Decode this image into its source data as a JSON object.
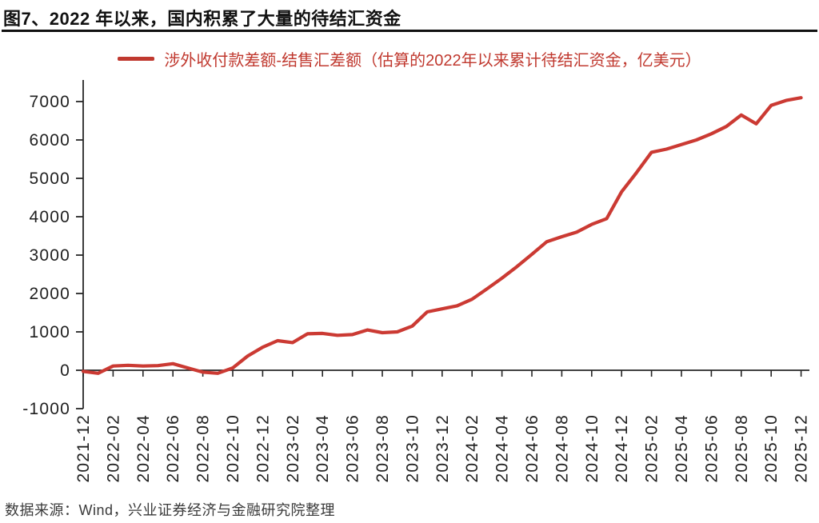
{
  "page": {
    "title": "图7、2022 年以来，国内积累了大量的待结汇资金",
    "source": "数据来源：Wind，兴业证券经济与金融研究院整理"
  },
  "colors": {
    "accent_red": "#cb3a33",
    "legend_red": "#c0392f",
    "axis": "#262626",
    "label_text": "#1f1f1f",
    "title_text": "#111111"
  },
  "legend": {
    "label": "涉外收付款差额-结售汇差额（估算的2022年以来累计待结汇资金，亿美元）"
  },
  "chart_data": {
    "type": "line",
    "title": "图7、2022 年以来，国内积累了大量的待结汇资金",
    "xlabel": "",
    "ylabel": "",
    "unit": "亿美元",
    "ylim": [
      -1000,
      7000
    ],
    "yticks": [
      -1000,
      0,
      1000,
      2000,
      3000,
      4000,
      5000,
      6000,
      7000
    ],
    "x_label_every": 2,
    "grid": false,
    "legend_position": "top",
    "x": [
      "2021-12",
      "2022-01",
      "2022-02",
      "2022-03",
      "2022-04",
      "2022-05",
      "2022-06",
      "2022-07",
      "2022-08",
      "2022-09",
      "2022-10",
      "2022-11",
      "2022-12",
      "2023-01",
      "2023-02",
      "2023-03",
      "2023-04",
      "2023-05",
      "2023-06",
      "2023-07",
      "2023-08",
      "2023-09",
      "2023-10",
      "2023-11",
      "2023-12",
      "2024-01",
      "2024-02",
      "2024-03",
      "2024-04",
      "2024-05",
      "2024-06",
      "2024-07",
      "2024-08",
      "2024-09",
      "2024-10",
      "2024-11",
      "2024-12",
      "2025-01",
      "2025-02",
      "2025-03",
      "2025-04",
      "2025-05",
      "2025-06",
      "2025-07",
      "2025-08",
      "2025-09",
      "2025-10",
      "2025-11",
      "2025-12"
    ],
    "series": [
      {
        "name": "涉外收付款差额-结售汇差额（估算的2022年以来累计待结汇资金，亿美元）",
        "color": "#cb3a33",
        "values": [
          -30,
          -80,
          110,
          130,
          110,
          120,
          170,
          60,
          -50,
          -80,
          60,
          370,
          600,
          770,
          720,
          950,
          960,
          910,
          930,
          1050,
          980,
          1000,
          1150,
          1520,
          1600,
          1680,
          1850,
          2120,
          2400,
          2700,
          3020,
          3350,
          3480,
          3600,
          3800,
          3950,
          4650,
          5150,
          5680,
          5760,
          5880,
          6000,
          6160,
          6350,
          6650,
          6420,
          6900,
          7030,
          7100
        ]
      }
    ]
  }
}
